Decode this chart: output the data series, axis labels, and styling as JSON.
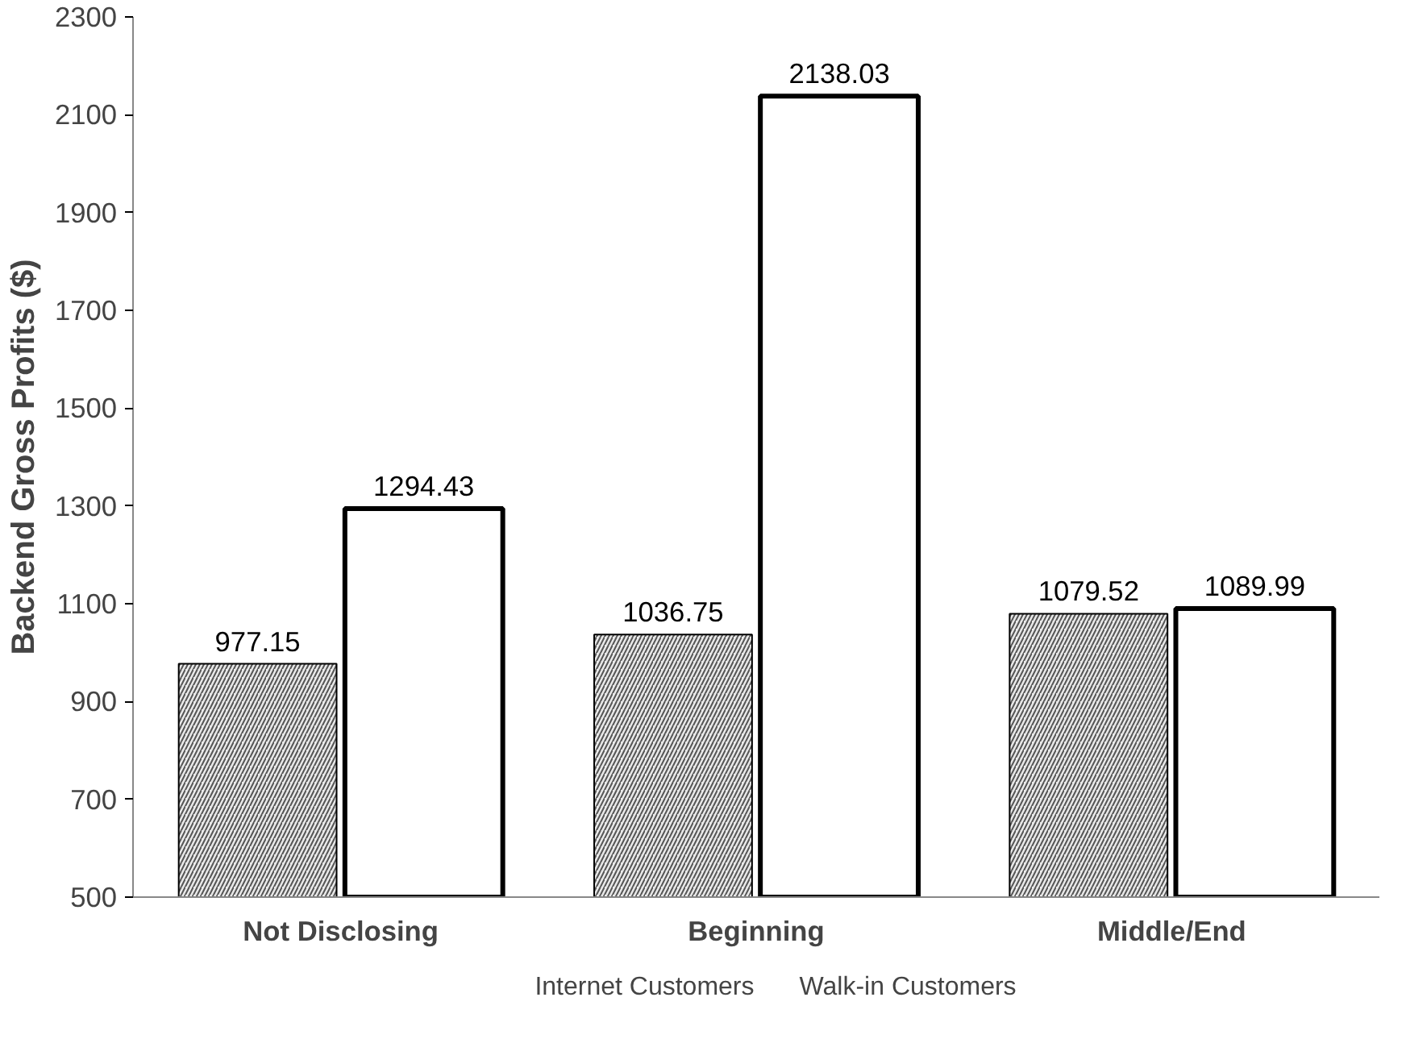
{
  "chart_data": {
    "type": "bar",
    "ylabel": "Backend Gross Profits ($)",
    "categories": [
      "Not Disclosing",
      "Beginning",
      "Middle/End"
    ],
    "series": [
      {
        "name": "Internet Customers",
        "color": "#a6a6a6",
        "values": [
          977.15,
          1036.75,
          1079.52
        ]
      },
      {
        "name": "Walk-in Customers",
        "color": "#ffffff",
        "values": [
          1294.43,
          2138.03,
          1089.99
        ]
      }
    ],
    "ylim": [
      500,
      2300
    ],
    "yticks": [
      500,
      700,
      900,
      1100,
      1300,
      1500,
      1700,
      1900,
      2100,
      2300
    ],
    "grid": false,
    "legend": "bottom",
    "data_labels": true
  }
}
